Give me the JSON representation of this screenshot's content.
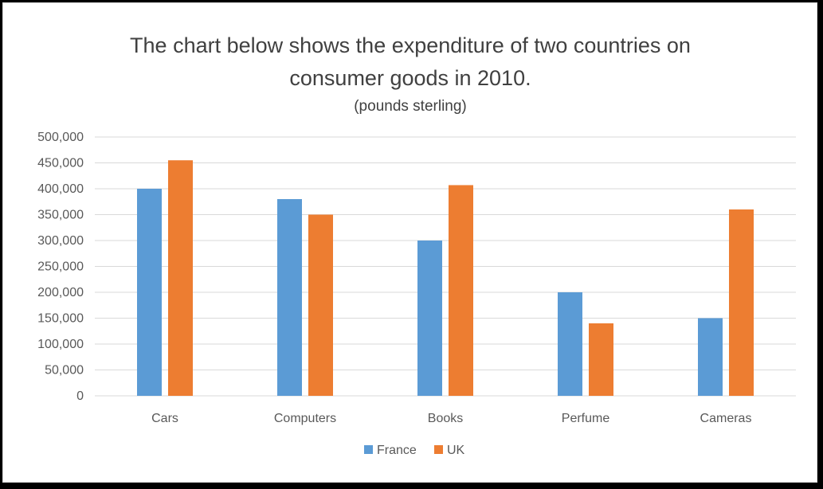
{
  "chart_data": {
    "type": "bar",
    "title": "The chart below shows the expenditure of two countries on consumer goods in 2010.",
    "title_lines": [
      "The chart below shows the expenditure of two countries on",
      "consumer goods in 2010."
    ],
    "subtitle": "(pounds sterling)",
    "xlabel": "",
    "ylabel": "",
    "categories": [
      "Cars",
      "Computers",
      "Books",
      "Perfume",
      "Cameras"
    ],
    "series": [
      {
        "name": "France",
        "color": "#5b9bd5",
        "values": [
          400000,
          380000,
          300000,
          200000,
          150000
        ]
      },
      {
        "name": "UK",
        "color": "#ed7d31",
        "values": [
          455000,
          350000,
          407000,
          140000,
          360000
        ]
      }
    ],
    "ylim": [
      0,
      500000
    ],
    "yticks": [
      "0",
      "50,000",
      "100,000",
      "150,000",
      "200,000",
      "250,000",
      "300,000",
      "350,000",
      "400,000",
      "450,000",
      "500,000"
    ],
    "grid": true,
    "legend_position": "bottom",
    "colors": {
      "gridline": "#d9d9d9",
      "axis_text": "#595959",
      "title": "#404040"
    }
  }
}
